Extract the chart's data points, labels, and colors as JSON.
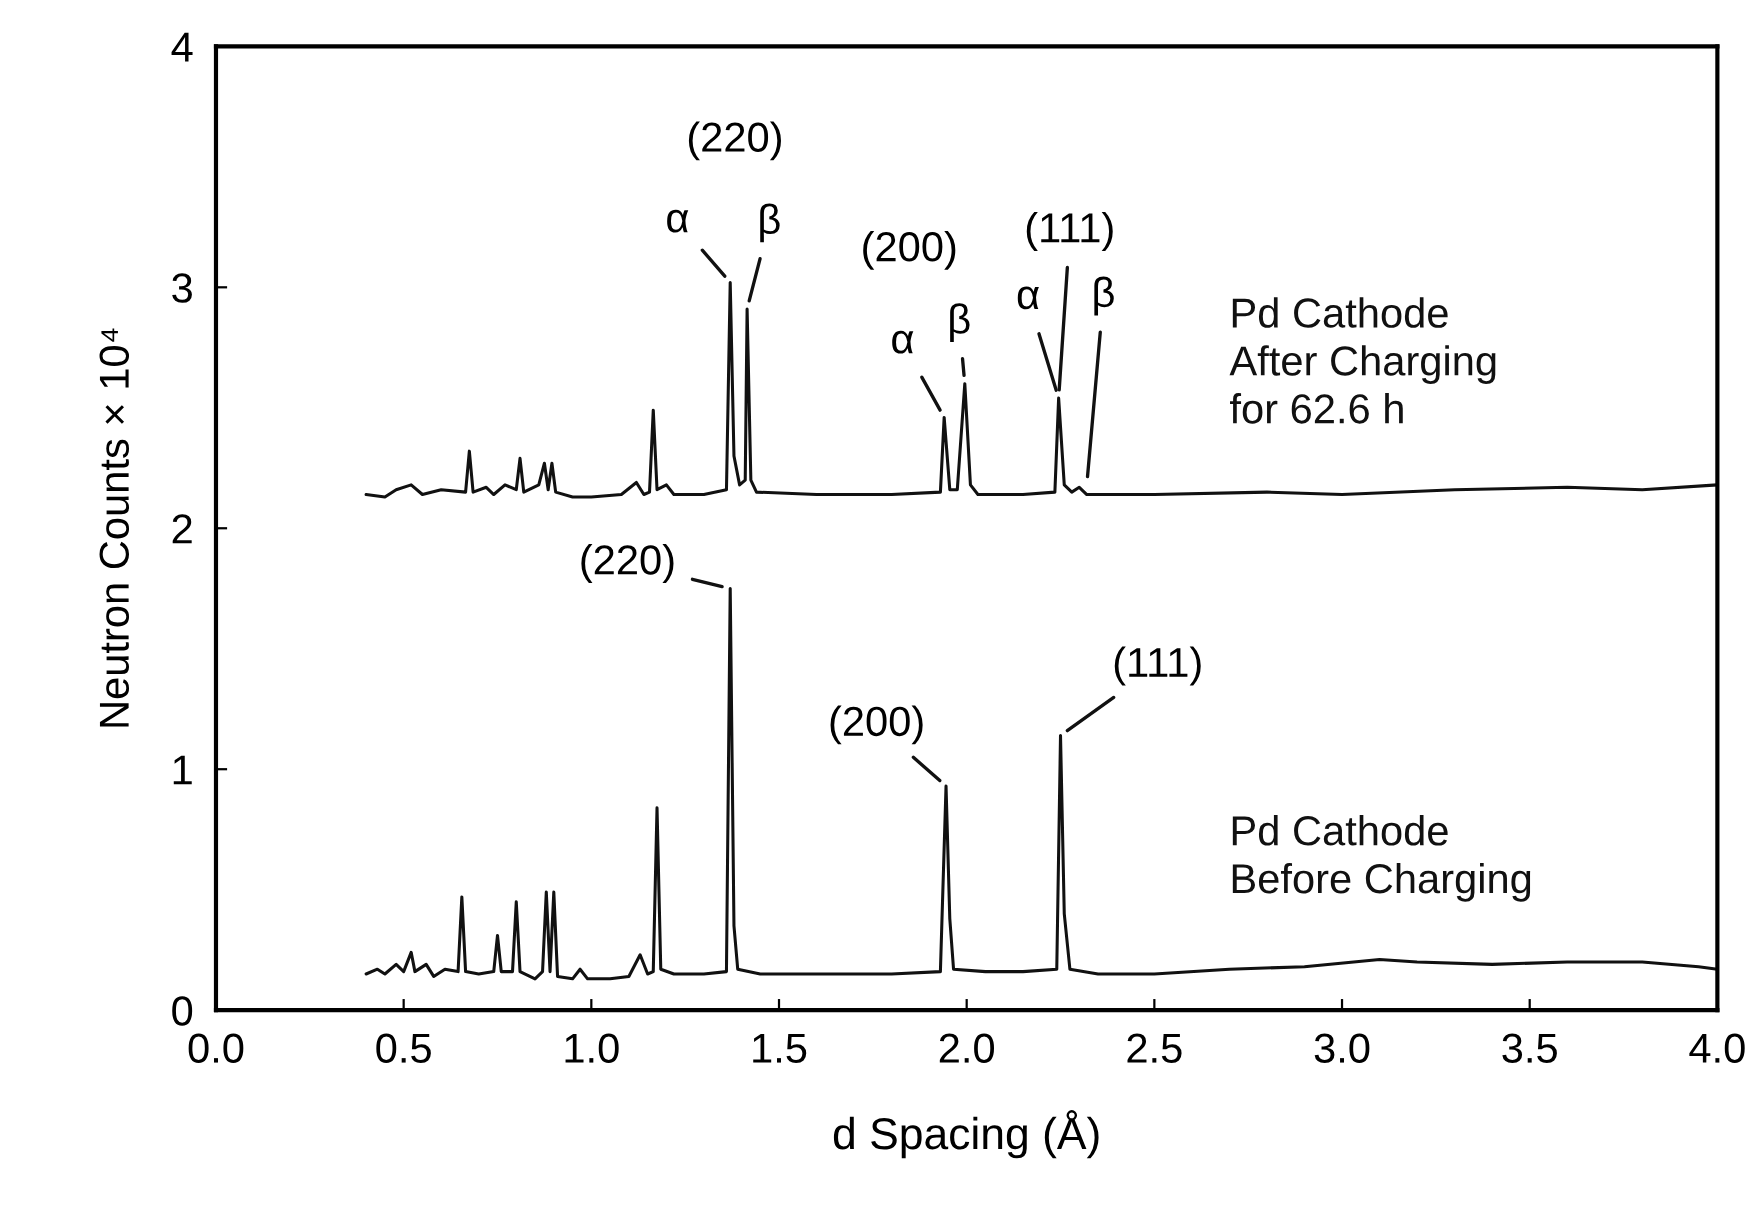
{
  "chart_data": {
    "type": "line",
    "xlabel": "d Spacing (Å)",
    "ylabel": "Neutron Counts × 10⁴",
    "xlim": [
      0,
      4
    ],
    "ylim": [
      0,
      4
    ],
    "xticks": [
      {
        "value": 0,
        "label": "0.0"
      },
      0.5,
      {
        "value": 1,
        "label": "1.0"
      },
      1.5,
      {
        "value": 2,
        "label": "2.0"
      },
      2.5,
      {
        "value": 3,
        "label": "3.0"
      },
      3.5,
      {
        "value": 4,
        "label": "4.0"
      }
    ],
    "yticks": [
      0,
      1,
      2,
      3,
      4
    ],
    "grid": false,
    "marker": "none",
    "line_style": "solid",
    "series": [
      {
        "name": "Pd Cathode\nAfter Charging\nfor 62.6 h",
        "color": "#111111",
        "x": [
          0.4,
          0.45,
          0.48,
          0.52,
          0.55,
          0.6,
          0.665,
          0.675,
          0.685,
          0.72,
          0.74,
          0.77,
          0.8,
          0.81,
          0.82,
          0.86,
          0.875,
          0.885,
          0.895,
          0.905,
          0.95,
          1.0,
          1.08,
          1.12,
          1.14,
          1.155,
          1.165,
          1.175,
          1.2,
          1.22,
          1.3,
          1.36,
          1.37,
          1.38,
          1.395,
          1.41,
          1.415,
          1.425,
          1.44,
          1.6,
          1.8,
          1.93,
          1.94,
          1.955,
          1.975,
          1.995,
          2.01,
          2.03,
          2.15,
          2.235,
          2.245,
          2.26,
          2.28,
          2.3,
          2.32,
          2.5,
          2.8,
          3.0,
          3.3,
          3.6,
          3.8,
          4.0
        ],
        "values": [
          2.14,
          2.13,
          2.16,
          2.18,
          2.14,
          2.16,
          2.15,
          2.32,
          2.15,
          2.17,
          2.14,
          2.18,
          2.16,
          2.29,
          2.15,
          2.18,
          2.27,
          2.16,
          2.27,
          2.15,
          2.13,
          2.13,
          2.14,
          2.19,
          2.14,
          2.15,
          2.49,
          2.16,
          2.18,
          2.14,
          2.14,
          2.16,
          3.02,
          2.3,
          2.18,
          2.2,
          2.91,
          2.2,
          2.15,
          2.14,
          2.14,
          2.15,
          2.46,
          2.16,
          2.16,
          2.6,
          2.18,
          2.14,
          2.14,
          2.15,
          2.54,
          2.18,
          2.15,
          2.17,
          2.14,
          2.14,
          2.15,
          2.14,
          2.16,
          2.17,
          2.16,
          2.18
        ]
      },
      {
        "name": "Pd Cathode\nBefore Charging",
        "color": "#111111",
        "x": [
          0.4,
          0.43,
          0.45,
          0.48,
          0.5,
          0.52,
          0.53,
          0.56,
          0.58,
          0.61,
          0.645,
          0.655,
          0.665,
          0.7,
          0.74,
          0.75,
          0.76,
          0.79,
          0.8,
          0.81,
          0.85,
          0.87,
          0.88,
          0.89,
          0.9,
          0.91,
          0.95,
          0.97,
          0.99,
          1.05,
          1.1,
          1.13,
          1.15,
          1.165,
          1.175,
          1.185,
          1.22,
          1.3,
          1.36,
          1.37,
          1.38,
          1.39,
          1.45,
          1.6,
          1.8,
          1.93,
          1.945,
          1.955,
          1.965,
          2.05,
          2.15,
          2.24,
          2.25,
          2.26,
          2.275,
          2.35,
          2.5,
          2.7,
          2.9,
          3.1,
          3.2,
          3.4,
          3.6,
          3.8,
          3.95,
          4.0
        ],
        "values": [
          0.15,
          0.17,
          0.15,
          0.19,
          0.16,
          0.24,
          0.16,
          0.19,
          0.14,
          0.17,
          0.16,
          0.47,
          0.16,
          0.15,
          0.16,
          0.31,
          0.16,
          0.16,
          0.45,
          0.16,
          0.13,
          0.16,
          0.49,
          0.16,
          0.49,
          0.14,
          0.13,
          0.17,
          0.13,
          0.13,
          0.14,
          0.23,
          0.15,
          0.16,
          0.84,
          0.17,
          0.15,
          0.15,
          0.16,
          1.75,
          0.35,
          0.17,
          0.15,
          0.15,
          0.15,
          0.16,
          0.93,
          0.38,
          0.17,
          0.16,
          0.16,
          0.17,
          1.14,
          0.4,
          0.17,
          0.15,
          0.15,
          0.17,
          0.18,
          0.21,
          0.2,
          0.19,
          0.2,
          0.2,
          0.18,
          0.17
        ]
      }
    ],
    "annotations": [
      {
        "text": "(220)",
        "x": 1.39,
        "y": 3.02
      },
      {
        "text": "α",
        "x": 1.37,
        "y": 3.02
      },
      {
        "text": "β",
        "x": 1.415,
        "y": 2.91
      },
      {
        "text": "(200)",
        "x": 1.995,
        "y": 2.6
      },
      {
        "text": "α",
        "x": 1.94,
        "y": 2.46
      },
      {
        "text": "β",
        "x": 1.995,
        "y": 2.6
      },
      {
        "text": "(111)",
        "x": 2.245,
        "y": 2.54
      },
      {
        "text": "α",
        "x": 2.245,
        "y": 2.54
      },
      {
        "text": "β",
        "x": 2.32,
        "y": 2.18
      },
      {
        "text": "(220)",
        "x": 1.37,
        "y": 1.75
      },
      {
        "text": "(200)",
        "x": 1.945,
        "y": 0.93
      },
      {
        "text": "(111)",
        "x": 2.25,
        "y": 1.14
      }
    ]
  }
}
